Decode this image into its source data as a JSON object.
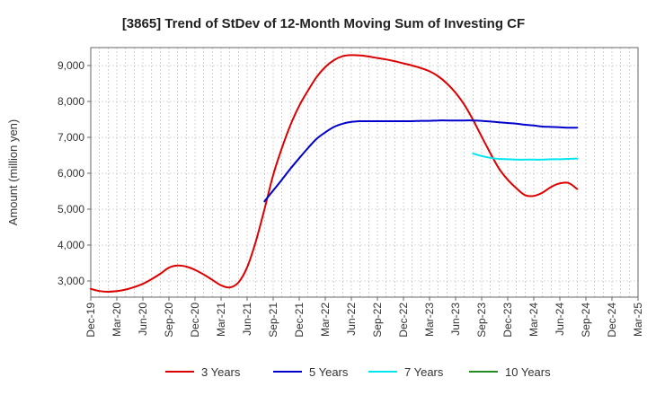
{
  "chart_data": {
    "type": "line",
    "title": "[3865]  Trend of StDev of 12-Month Moving Sum of Investing CF",
    "xlabel": "",
    "ylabel": "Amount (million yen)",
    "ylim": [
      2550,
      9500
    ],
    "yticks": [
      3000,
      4000,
      5000,
      6000,
      7000,
      8000,
      9000
    ],
    "ytick_labels": [
      "3,000",
      "4,000",
      "5,000",
      "6,000",
      "7,000",
      "8,000",
      "9,000"
    ],
    "x_tick_labels": [
      "Dec-19",
      "Mar-20",
      "Jun-20",
      "Sep-20",
      "Dec-20",
      "Mar-21",
      "Jun-21",
      "Sep-21",
      "Dec-21",
      "Mar-22",
      "Jun-22",
      "Sep-22",
      "Dec-22",
      "Mar-23",
      "Jun-23",
      "Sep-23",
      "Dec-23",
      "Mar-24",
      "Jun-24",
      "Sep-24",
      "Dec-24",
      "Mar-25"
    ],
    "grid": true,
    "legend_position": "bottom",
    "series": [
      {
        "name": "3 Years",
        "color": "#dd0000",
        "points": [
          [
            "Dec-19",
            2780
          ],
          [
            "Jan-20",
            2720
          ],
          [
            "Feb-20",
            2700
          ],
          [
            "Mar-20",
            2720
          ],
          [
            "Apr-20",
            2760
          ],
          [
            "May-20",
            2830
          ],
          [
            "Jun-20",
            2920
          ],
          [
            "Jul-20",
            3050
          ],
          [
            "Aug-20",
            3200
          ],
          [
            "Sep-20",
            3370
          ],
          [
            "Oct-20",
            3430
          ],
          [
            "Nov-20",
            3400
          ],
          [
            "Dec-20",
            3310
          ],
          [
            "Jan-21",
            3180
          ],
          [
            "Feb-21",
            3030
          ],
          [
            "Mar-21",
            2880
          ],
          [
            "Apr-21",
            2820
          ],
          [
            "May-21",
            2960
          ],
          [
            "Jun-21",
            3380
          ],
          [
            "Jul-21",
            4100
          ],
          [
            "Aug-21",
            5000
          ],
          [
            "Sep-21",
            5950
          ],
          [
            "Oct-21",
            6700
          ],
          [
            "Nov-21",
            7350
          ],
          [
            "Dec-21",
            7880
          ],
          [
            "Jan-22",
            8300
          ],
          [
            "Feb-22",
            8680
          ],
          [
            "Mar-22",
            8960
          ],
          [
            "Apr-22",
            9150
          ],
          [
            "May-22",
            9260
          ],
          [
            "Jun-22",
            9290
          ],
          [
            "Jul-22",
            9280
          ],
          [
            "Aug-22",
            9250
          ],
          [
            "Sep-22",
            9210
          ],
          [
            "Oct-22",
            9170
          ],
          [
            "Nov-22",
            9120
          ],
          [
            "Dec-22",
            9060
          ],
          [
            "Jan-23",
            9000
          ],
          [
            "Feb-23",
            8930
          ],
          [
            "Mar-23",
            8840
          ],
          [
            "Apr-23",
            8700
          ],
          [
            "May-23",
            8500
          ],
          [
            "Jun-23",
            8240
          ],
          [
            "Jul-23",
            7910
          ],
          [
            "Aug-23",
            7490
          ],
          [
            "Sep-23",
            7020
          ],
          [
            "Oct-23",
            6560
          ],
          [
            "Nov-23",
            6130
          ],
          [
            "Dec-23",
            5820
          ],
          [
            "Jan-24",
            5580
          ],
          [
            "Feb-24",
            5390
          ],
          [
            "Mar-24",
            5370
          ],
          [
            "Apr-24",
            5460
          ],
          [
            "May-24",
            5620
          ],
          [
            "Jun-24",
            5720
          ],
          [
            "Jul-24",
            5730
          ],
          [
            "Aug-24",
            5560
          ]
        ]
      },
      {
        "name": "5 Years",
        "color": "#0000cc",
        "points": [
          [
            "Aug-21",
            5220
          ],
          [
            "Sep-21",
            5520
          ],
          [
            "Oct-21",
            5820
          ],
          [
            "Nov-21",
            6130
          ],
          [
            "Dec-21",
            6420
          ],
          [
            "Jan-22",
            6700
          ],
          [
            "Feb-22",
            6960
          ],
          [
            "Mar-22",
            7140
          ],
          [
            "Apr-22",
            7290
          ],
          [
            "May-22",
            7380
          ],
          [
            "Jun-22",
            7430
          ],
          [
            "Jul-22",
            7450
          ],
          [
            "Aug-22",
            7450
          ],
          [
            "Sep-22",
            7450
          ],
          [
            "Oct-22",
            7450
          ],
          [
            "Nov-22",
            7450
          ],
          [
            "Dec-22",
            7450
          ],
          [
            "Jan-23",
            7450
          ],
          [
            "Feb-23",
            7460
          ],
          [
            "Mar-23",
            7460
          ],
          [
            "Apr-23",
            7470
          ],
          [
            "May-23",
            7470
          ],
          [
            "Jun-23",
            7470
          ],
          [
            "Jul-23",
            7470
          ],
          [
            "Aug-23",
            7470
          ],
          [
            "Sep-23",
            7460
          ],
          [
            "Oct-23",
            7440
          ],
          [
            "Nov-23",
            7420
          ],
          [
            "Dec-23",
            7400
          ],
          [
            "Jan-24",
            7380
          ],
          [
            "Feb-24",
            7350
          ],
          [
            "Mar-24",
            7330
          ],
          [
            "Apr-24",
            7300
          ],
          [
            "May-24",
            7290
          ],
          [
            "Jun-24",
            7280
          ],
          [
            "Jul-24",
            7270
          ],
          [
            "Aug-24",
            7270
          ]
        ]
      },
      {
        "name": "7 Years",
        "color": "#00e5ee",
        "points": [
          [
            "Aug-23",
            6550
          ],
          [
            "Sep-23",
            6480
          ],
          [
            "Oct-23",
            6430
          ],
          [
            "Nov-23",
            6400
          ],
          [
            "Dec-23",
            6390
          ],
          [
            "Jan-24",
            6380
          ],
          [
            "Feb-24",
            6380
          ],
          [
            "Mar-24",
            6380
          ],
          [
            "Apr-24",
            6380
          ],
          [
            "May-24",
            6390
          ],
          [
            "Jun-24",
            6390
          ],
          [
            "Jul-24",
            6400
          ],
          [
            "Aug-24",
            6410
          ]
        ]
      },
      {
        "name": "10 Years",
        "color": "#228b22",
        "points": []
      }
    ]
  }
}
